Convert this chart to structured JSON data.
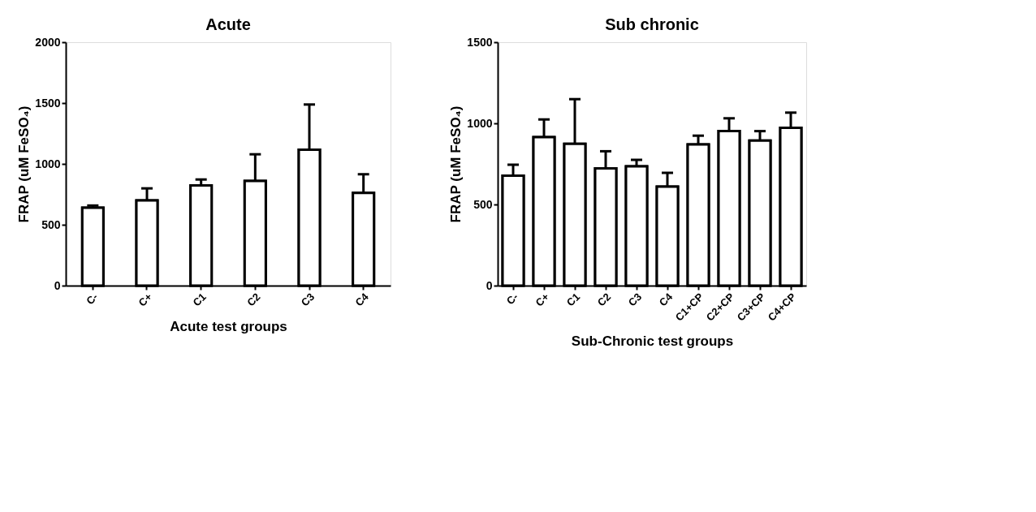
{
  "chart_data": [
    {
      "type": "bar",
      "title": "Acute",
      "xlabel": "Acute test groups",
      "ylabel": "FRAP (uM FeSO₄)",
      "categories": [
        "C-",
        "C+",
        "C1",
        "C2",
        "C3",
        "C4"
      ],
      "values": [
        640,
        700,
        823,
        860,
        1116,
        762
      ],
      "errors": [
        18,
        99,
        49,
        219,
        372,
        153
      ],
      "color": "#ffffff",
      "ylim": [
        0,
        2000
      ],
      "yticks": [
        0,
        500,
        1000,
        1500,
        2000
      ],
      "grid": false
    },
    {
      "type": "bar",
      "title": "Sub chronic",
      "xlabel": "Sub-Chronic test groups",
      "ylabel": "FRAP (uM FeSO₄)",
      "categories": [
        "C-",
        "C+",
        "C1",
        "C2",
        "C3",
        "C4",
        "C1+CP",
        "C2+CP",
        "C3+CP",
        "C4+CP"
      ],
      "values": [
        678,
        915,
        874,
        723,
        735,
        610,
        870,
        952,
        894,
        972
      ],
      "errors": [
        67,
        109,
        275,
        105,
        40,
        85,
        54,
        79,
        58,
        94
      ],
      "color": "#ffffff",
      "ylim": [
        0,
        1500
      ],
      "yticks": [
        0,
        500,
        1000,
        1500
      ],
      "grid": false
    }
  ]
}
